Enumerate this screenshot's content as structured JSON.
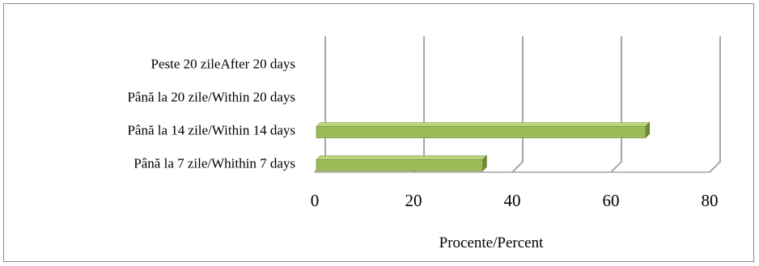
{
  "chart_data": {
    "type": "bar",
    "orientation": "horizontal",
    "style": "3d",
    "categories": [
      "Peste 20 zileAfter 20 days",
      "Până la 20 zile/Within 20 days",
      "Până la 14 zile/Within 14 days",
      "Până la 7 zile/Whithin 7 days"
    ],
    "values": [
      0,
      0,
      67,
      34
    ],
    "xlabel": "Procente/Percent",
    "xlim": [
      0,
      80
    ],
    "xticks": [
      "0",
      "20",
      "40",
      "60",
      "80"
    ],
    "grid": true,
    "legend": "none",
    "colors": {
      "bar_front": "#9bbb59",
      "bar_top": "#b9d27c",
      "bar_side": "#6f8a36",
      "grid": "#a6a6a6"
    }
  }
}
